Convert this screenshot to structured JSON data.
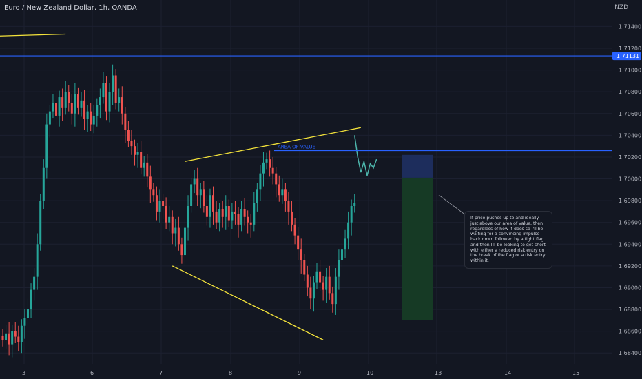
{
  "header": {
    "title": "Euro / New Zealand Dollar, 1h, OANDA",
    "currency": "NZD"
  },
  "colors": {
    "bg": "#131722",
    "grid": "#1c2030",
    "up": "#26a69a",
    "down": "#ef5350",
    "yellow": "#f5e43b",
    "blue": "#2962ff",
    "axis_text": "#b2b5be",
    "risk": "#1d2d5c",
    "reward": "#163a25",
    "projection": "#4db6ac"
  },
  "chart_data": {
    "type": "candlestick",
    "symbol": "EURNZD",
    "timeframe": "1h",
    "ylim": [
      1.683,
      1.7158
    ],
    "y_ticks": [
      "1.71400",
      "1.71200",
      "1.71000",
      "1.70800",
      "1.70600",
      "1.70400",
      "1.70200",
      "1.70000",
      "1.69800",
      "1.69600",
      "1.69400",
      "1.69200",
      "1.69000",
      "1.68800",
      "1.68600",
      "1.68400"
    ],
    "x_ticks": [
      "3",
      "6",
      "7",
      "8",
      "9",
      "10",
      "13",
      "14",
      "15"
    ],
    "price_label": "1.71131",
    "closes": [
      1.6852,
      1.6858,
      1.6848,
      1.686,
      1.6855,
      1.685,
      1.6865,
      1.6872,
      1.688,
      1.6898,
      1.691,
      1.694,
      1.698,
      1.701,
      1.705,
      1.7062,
      1.707,
      1.7058,
      1.7075,
      1.7065,
      1.708,
      1.707,
      1.706,
      1.7078,
      1.7065,
      1.7072,
      1.7055,
      1.7062,
      1.705,
      1.7058,
      1.7068,
      1.7075,
      1.7088,
      1.7062,
      1.708,
      1.7095,
      1.707,
      1.7075,
      1.706,
      1.7045,
      1.7035,
      1.703,
      1.7022,
      1.7025,
      1.701,
      1.7015,
      1.7002,
      1.699,
      1.6985,
      1.697,
      1.698,
      1.6975,
      1.696,
      1.6965,
      1.695,
      1.6955,
      1.694,
      1.693,
      1.6955,
      1.6975,
      1.6995,
      1.7,
      1.6985,
      1.699,
      1.6975,
      1.6965,
      1.6985,
      1.697,
      1.696,
      1.6972,
      1.6965,
      1.6975,
      1.6962,
      1.697,
      1.6968,
      1.6958,
      1.6972,
      1.6965,
      1.696,
      1.6958,
      1.6978,
      1.699,
      1.7005,
      1.7015,
      1.7018,
      1.701,
      1.7005,
      1.6995,
      1.6985,
      1.699,
      1.698,
      1.697,
      1.6958,
      1.6948,
      1.6935,
      1.6925,
      1.6912,
      1.69,
      1.689,
      1.6905,
      1.6915,
      1.6905,
      1.6898,
      1.691,
      1.6895,
      1.6885,
      1.691,
      1.6925,
      1.6935,
      1.6945,
      1.696,
      1.6975,
      1.6978
    ],
    "annotations": {
      "area_label": "AREA OF VALUE",
      "note": "If price pushes up to and ideally just above our area of value, then regardless of how it does so I'll be waiting for a convincing impulse back down followed by a tight flag and then I'll be looking to get short with either a reduced risk entry on the break of the flag or a risk entry within it."
    },
    "levels": {
      "blue_top": 1.7113,
      "blue_value": 1.7026,
      "position_entry": 1.7001,
      "position_stop": 1.7022,
      "position_target": 1.687
    },
    "trendlines": [
      {
        "from": [
          -4,
          1.7131
        ],
        "to": [
          20,
          1.7133
        ]
      },
      {
        "from": [
          58,
          1.7016
        ],
        "to": [
          114,
          1.7047
        ]
      },
      {
        "from": [
          54,
          1.692
        ],
        "to": [
          102,
          1.6852
        ]
      }
    ],
    "projection": [
      [
        112,
        1.704
      ],
      [
        113,
        1.702
      ],
      [
        114,
        1.7006
      ],
      [
        115,
        1.7016
      ],
      [
        116,
        1.7003
      ],
      [
        117,
        1.7014
      ],
      [
        118,
        1.701
      ],
      [
        119,
        1.7018
      ]
    ],
    "grid": true
  }
}
